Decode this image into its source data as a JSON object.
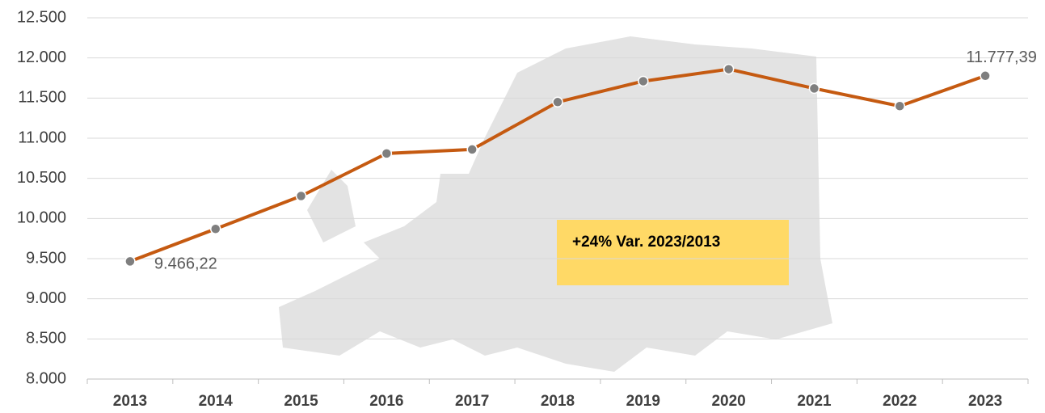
{
  "chart_data": {
    "type": "line",
    "categories": [
      "2013",
      "2014",
      "2015",
      "2016",
      "2017",
      "2018",
      "2019",
      "2020",
      "2021",
      "2022",
      "2023"
    ],
    "series": [
      {
        "name": "Value",
        "color": "#c55a11",
        "marker_color": "#7f7f7f",
        "values": [
          9466.22,
          9870,
          10280,
          10810,
          10860,
          11450,
          11710,
          11860,
          11620,
          11400,
          11777.39
        ],
        "value_labels": [
          "9.466,22",
          null,
          null,
          null,
          null,
          null,
          null,
          null,
          null,
          null,
          "11.777,39"
        ]
      }
    ],
    "ylim": [
      8000,
      12500
    ],
    "yticks": [
      {
        "value": 8000,
        "label": "8.000"
      },
      {
        "value": 8500,
        "label": "8.500"
      },
      {
        "value": 9000,
        "label": "9.000"
      },
      {
        "value": 9500,
        "label": "9.500"
      },
      {
        "value": 10000,
        "label": "10.000"
      },
      {
        "value": 10500,
        "label": "10.500"
      },
      {
        "value": 11000,
        "label": "11.000"
      },
      {
        "value": 11500,
        "label": "11.500"
      },
      {
        "value": 12000,
        "label": "12.000"
      },
      {
        "value": 12500,
        "label": "12.500"
      }
    ],
    "grid": true,
    "annotation": "+24% Var. 2023/2013"
  }
}
